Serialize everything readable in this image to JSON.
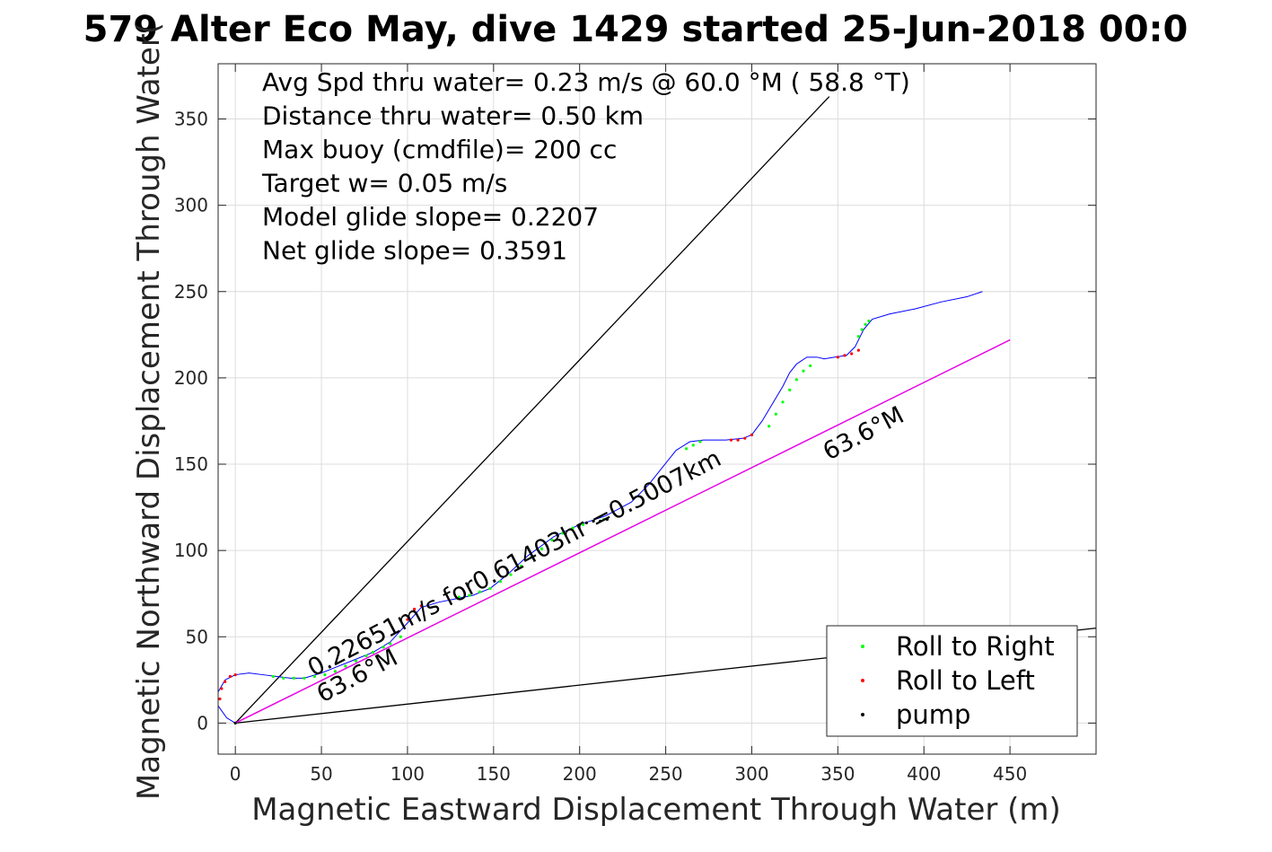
{
  "chart_data": {
    "type": "line",
    "title": "579 Alter Eco May, dive 1429 started 25-Jun-2018 00:0",
    "xlabel": "Magnetic Eastward Displacement Through Water (m)",
    "ylabel": "Magnetic Northward Displacement Through Water(",
    "xlim": [
      -10,
      500
    ],
    "ylim": [
      -18,
      382
    ],
    "xticks": [
      0,
      50,
      100,
      150,
      200,
      250,
      300,
      350,
      400,
      450
    ],
    "yticks": [
      0,
      50,
      100,
      150,
      200,
      250,
      300,
      350
    ],
    "grid": true,
    "legend_position": "bottom-right",
    "stats_lines": [
      "Avg Spd thru water=  0.23 m/s @  60.0 °M ( 58.8 °T)",
      "Distance thru water=  0.50 km",
      "Max buoy (cmdfile)= 200 cc",
      "Target w= 0.05 m/s",
      "Model glide slope= 0.2207",
      "Net glide slope= 0.3591"
    ],
    "annotations": {
      "track_label": "0.22651m/s for0.61403hr =0.5007km",
      "heading_label_near": "63.6°M",
      "heading_label_far": "63.6°M"
    },
    "legend": [
      {
        "label": "Roll to Right",
        "color": "#00ff00"
      },
      {
        "label": "Roll to Left",
        "color": "#ff0000"
      },
      {
        "label": "pump",
        "color": "#000000"
      }
    ],
    "colors": {
      "track": "#0000ff",
      "heading_line": "#ff00ff",
      "reference_lines": "#000000",
      "roll_right": "#00ff00",
      "roll_left": "#ff0000",
      "pump": "#000000"
    },
    "reference_lines": [
      {
        "x": [
          0,
          345
        ],
        "y": [
          0,
          363
        ]
      },
      {
        "x": [
          0,
          500
        ],
        "y": [
          0,
          55
        ]
      },
      {
        "x": [
          0,
          450
        ],
        "y": [
          0,
          222
        ]
      }
    ],
    "heading_line": {
      "x": [
        0,
        450
      ],
      "y": [
        0,
        222
      ]
    },
    "track": {
      "x": [
        0,
        -5,
        -10,
        -10,
        -6,
        0,
        8,
        16,
        24,
        32,
        40,
        50,
        60,
        70,
        80,
        90,
        100,
        108,
        118,
        128,
        138,
        148,
        158,
        170,
        185,
        200,
        215,
        230,
        240,
        248,
        256,
        264,
        272,
        285,
        295,
        300,
        306,
        312,
        318,
        322,
        326,
        332,
        338,
        342,
        348,
        355,
        360,
        365,
        370,
        380,
        395,
        410,
        425,
        434
      ],
      "y": [
        0,
        3,
        10,
        18,
        25,
        28,
        29,
        28,
        27,
        26,
        26,
        29,
        33,
        37,
        41,
        47,
        58,
        67,
        70,
        72,
        74,
        78,
        86,
        97,
        108,
        115,
        120,
        128,
        138,
        148,
        158,
        163,
        164,
        164,
        165,
        167,
        175,
        185,
        195,
        203,
        208,
        212,
        212,
        211,
        212,
        213,
        218,
        228,
        234,
        237,
        240,
        244,
        247,
        250
      ]
    },
    "roll_right": {
      "x": [
        22,
        28,
        34,
        40,
        46,
        52,
        58,
        64,
        70,
        76,
        80,
        86,
        90,
        96,
        130,
        136,
        142,
        148,
        154,
        160,
        166,
        172,
        178,
        184,
        190,
        196,
        202,
        208,
        214,
        262,
        266,
        270,
        310,
        314,
        318,
        322,
        326,
        330,
        334,
        362,
        364,
        366,
        368
      ],
      "y": [
        27,
        26,
        26,
        26,
        27,
        28,
        30,
        33,
        36,
        39,
        41,
        44,
        46,
        50,
        73,
        74,
        76,
        78,
        82,
        86,
        91,
        96,
        101,
        106,
        110,
        113,
        115,
        117,
        118,
        159,
        161,
        163,
        172,
        179,
        186,
        193,
        199,
        204,
        207,
        224,
        228,
        231,
        233
      ]
    },
    "roll_left": {
      "x": [
        -9,
        -8,
        -6,
        -3,
        0,
        100,
        104,
        108,
        288,
        292,
        296,
        300,
        350,
        354,
        358,
        362
      ],
      "y": [
        14,
        20,
        24,
        27,
        28,
        60,
        66,
        68,
        164,
        164,
        165,
        167,
        212,
        213,
        214,
        216
      ]
    },
    "pump": {
      "x": [
        0,
        200,
        204,
        208,
        212,
        216
      ],
      "y": [
        0,
        115,
        116,
        117,
        117,
        118
      ]
    }
  }
}
